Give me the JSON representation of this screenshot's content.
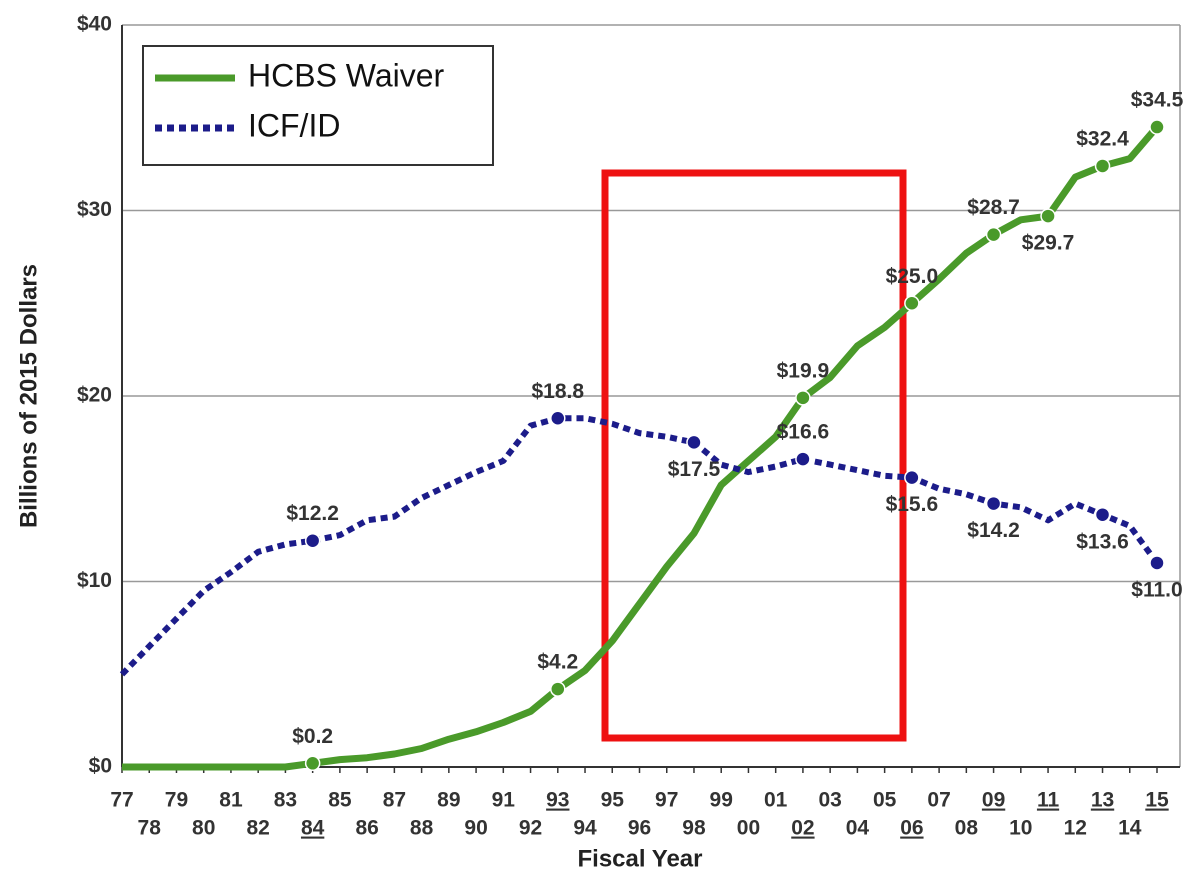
{
  "chart_data": {
    "type": "line",
    "x_label": "Fiscal Year",
    "y_label": "Billions of 2015 Dollars",
    "categories": [
      "77",
      "78",
      "79",
      "80",
      "81",
      "82",
      "83",
      "84",
      "85",
      "86",
      "87",
      "88",
      "89",
      "90",
      "91",
      "92",
      "93",
      "94",
      "95",
      "96",
      "97",
      "98",
      "99",
      "00",
      "01",
      "02",
      "03",
      "04",
      "05",
      "06",
      "07",
      "08",
      "09",
      "10",
      "11",
      "12",
      "13",
      "14",
      "15"
    ],
    "underlined_ticks": [
      7,
      16,
      25,
      29,
      32,
      34,
      36,
      38
    ],
    "series": [
      {
        "name": "HCBS Waiver",
        "color": "#4a9a2a",
        "style": "solid",
        "values": [
          0,
          0,
          0,
          0,
          0,
          0,
          0,
          0.2,
          0.4,
          0.5,
          0.7,
          1.0,
          1.5,
          1.9,
          2.4,
          3.0,
          4.2,
          5.2,
          6.8,
          8.8,
          10.8,
          12.6,
          15.2,
          16.5,
          17.8,
          19.9,
          21.0,
          22.7,
          23.7,
          25.0,
          26.3,
          27.7,
          28.7,
          29.5,
          29.7,
          31.8,
          32.4,
          32.8,
          34.5
        ],
        "value_labels": [
          null,
          null,
          null,
          null,
          null,
          null,
          null,
          "$0.2",
          null,
          null,
          null,
          null,
          null,
          null,
          null,
          null,
          "$4.2",
          null,
          null,
          null,
          null,
          null,
          null,
          null,
          null,
          "$19.9",
          null,
          null,
          null,
          "$25.0",
          null,
          null,
          "$28.7",
          null,
          "$29.7",
          null,
          "$32.4",
          null,
          "$34.5"
        ]
      },
      {
        "name": "ICF/ID",
        "color": "#1c1c8a",
        "style": "dotted",
        "values": [
          5.0,
          6.5,
          8.0,
          9.5,
          10.5,
          11.6,
          12.0,
          12.2,
          12.5,
          13.3,
          13.5,
          14.5,
          15.2,
          15.9,
          16.5,
          18.4,
          18.8,
          18.8,
          18.5,
          18.0,
          17.8,
          17.5,
          16.3,
          15.9,
          16.2,
          16.6,
          16.3,
          16.0,
          15.7,
          15.6,
          15.0,
          14.7,
          14.2,
          14.0,
          13.3,
          14.2,
          13.6,
          13.0,
          11.0
        ],
        "value_labels": [
          null,
          null,
          null,
          null,
          null,
          null,
          null,
          "$12.2",
          null,
          null,
          null,
          null,
          null,
          null,
          null,
          null,
          "$18.8",
          null,
          null,
          null,
          null,
          "$17.5",
          null,
          null,
          null,
          "$16.6",
          null,
          null,
          null,
          "$15.6",
          null,
          null,
          "$14.2",
          null,
          null,
          null,
          "$13.6",
          null,
          "$11.0"
        ]
      }
    ],
    "ylim": [
      0,
      40
    ],
    "yticks": [
      {
        "value": 0,
        "label": "$0"
      },
      {
        "value": 10,
        "label": "$10"
      },
      {
        "value": 20,
        "label": "$20"
      },
      {
        "value": 30,
        "label": "$30"
      },
      {
        "value": 40,
        "label": "$40"
      }
    ],
    "grid": true,
    "legend": "top-left"
  }
}
